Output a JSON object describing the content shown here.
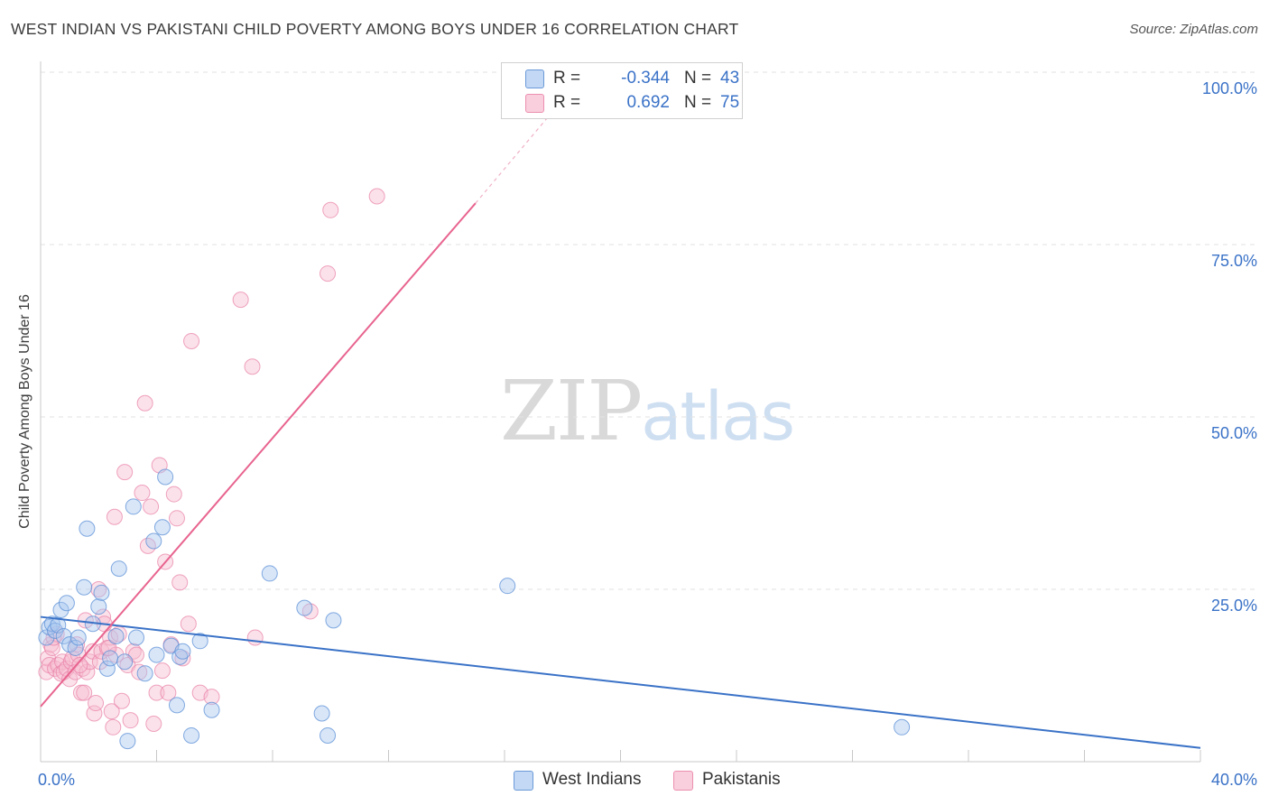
{
  "header": {
    "title": "WEST INDIAN VS PAKISTANI CHILD POVERTY AMONG BOYS UNDER 16 CORRELATION CHART",
    "source": "Source: ZipAtlas.com"
  },
  "watermark": {
    "zip": "ZIP",
    "atlas": "atlas"
  },
  "legend": {
    "rows": [
      {
        "r_label": "R =",
        "r_value": "-0.344",
        "n_label": "N =",
        "n_value": "43",
        "color": "#a9c8f0"
      },
      {
        "r_label": "R =",
        "r_value": "0.692",
        "n_label": "N =",
        "n_value": "75",
        "color": "#f7bcd0"
      }
    ]
  },
  "bottom_legend": {
    "west_indians": "West Indians",
    "pakistanis": "Pakistanis"
  },
  "colors": {
    "blue_fill": "#a9c8f0",
    "blue_stroke": "#5b8fd6",
    "blue_line": "#3a72c7",
    "pink_fill": "#f7bcd0",
    "pink_stroke": "#e87fa5",
    "pink_line": "#e8648f",
    "tick_label": "#3a72c7",
    "grid": "#e2e2e2"
  },
  "chart_data": {
    "type": "scatter",
    "title": "WEST INDIAN VS PAKISTANI CHILD POVERTY AMONG BOYS UNDER 16 CORRELATION CHART",
    "xlabel": "",
    "ylabel": "Child Poverty Among Boys Under 16",
    "xlim": [
      0,
      40
    ],
    "ylim": [
      0,
      100
    ],
    "x_tick_labels": [
      "0.0%",
      "40.0%"
    ],
    "y_tick_labels": [
      "25.0%",
      "50.0%",
      "75.0%",
      "100.0%"
    ],
    "y_ticks": [
      25,
      50,
      75,
      100
    ],
    "grid": true,
    "legend_position": "top-center",
    "series": [
      {
        "name": "West Indians",
        "r": -0.344,
        "n": 43,
        "trend": {
          "x": [
            0,
            40
          ],
          "y": [
            21.0,
            2.0
          ]
        },
        "points": [
          [
            0.2,
            18.0
          ],
          [
            0.3,
            19.5
          ],
          [
            0.4,
            20.0
          ],
          [
            0.5,
            19.0
          ],
          [
            0.6,
            19.8
          ],
          [
            0.7,
            22.0
          ],
          [
            0.8,
            18.2
          ],
          [
            0.9,
            23.0
          ],
          [
            1.0,
            17.0
          ],
          [
            1.2,
            16.5
          ],
          [
            1.3,
            18.0
          ],
          [
            1.5,
            25.3
          ],
          [
            1.6,
            33.8
          ],
          [
            1.8,
            20.0
          ],
          [
            2.0,
            22.5
          ],
          [
            2.1,
            24.5
          ],
          [
            2.3,
            13.5
          ],
          [
            2.4,
            15.0
          ],
          [
            2.6,
            18.2
          ],
          [
            2.7,
            28.0
          ],
          [
            2.9,
            14.5
          ],
          [
            3.0,
            3.0
          ],
          [
            3.2,
            37.0
          ],
          [
            3.3,
            18.0
          ],
          [
            3.6,
            12.8
          ],
          [
            3.9,
            32.0
          ],
          [
            4.0,
            15.5
          ],
          [
            4.2,
            34.0
          ],
          [
            4.3,
            41.3
          ],
          [
            4.5,
            16.8
          ],
          [
            4.7,
            8.2
          ],
          [
            4.8,
            15.2
          ],
          [
            4.9,
            16.0
          ],
          [
            5.2,
            3.8
          ],
          [
            5.5,
            17.5
          ],
          [
            5.9,
            7.5
          ],
          [
            7.9,
            27.3
          ],
          [
            9.1,
            22.3
          ],
          [
            9.7,
            7.0
          ],
          [
            9.9,
            3.8
          ],
          [
            10.1,
            20.5
          ],
          [
            16.1,
            25.5
          ],
          [
            29.7,
            5.0
          ]
        ]
      },
      {
        "name": "Pakistanis",
        "r": 0.692,
        "n": 75,
        "trend": {
          "x": [
            0,
            15
          ],
          "y": [
            8.0,
            81.0
          ]
        },
        "trend_dashed": {
          "x": [
            15,
            17.6
          ],
          "y": [
            81.0,
            94.0
          ]
        },
        "points": [
          [
            0.2,
            13.0
          ],
          [
            0.25,
            15.0
          ],
          [
            0.3,
            14.0
          ],
          [
            0.35,
            17.0
          ],
          [
            0.4,
            16.5
          ],
          [
            0.5,
            13.5
          ],
          [
            0.55,
            18.5
          ],
          [
            0.6,
            14.0
          ],
          [
            0.7,
            12.8
          ],
          [
            0.75,
            14.5
          ],
          [
            0.8,
            13.0
          ],
          [
            0.9,
            13.5
          ],
          [
            1.0,
            12.0
          ],
          [
            1.05,
            14.5
          ],
          [
            1.1,
            15.0
          ],
          [
            1.2,
            13.0
          ],
          [
            1.25,
            17.0
          ],
          [
            1.3,
            15.5
          ],
          [
            1.4,
            10.0
          ],
          [
            1.45,
            13.5
          ],
          [
            1.5,
            10.0
          ],
          [
            1.55,
            20.5
          ],
          [
            1.6,
            13.0
          ],
          [
            1.7,
            14.5
          ],
          [
            1.8,
            16.0
          ],
          [
            1.85,
            7.0
          ],
          [
            1.9,
            8.5
          ],
          [
            2.0,
            25.0
          ],
          [
            2.05,
            14.5
          ],
          [
            2.1,
            16.0
          ],
          [
            2.15,
            21.0
          ],
          [
            2.2,
            20.0
          ],
          [
            2.3,
            16.5
          ],
          [
            2.4,
            18.0
          ],
          [
            2.45,
            7.3
          ],
          [
            2.5,
            5.0
          ],
          [
            2.55,
            35.5
          ],
          [
            2.6,
            15.5
          ],
          [
            2.7,
            18.5
          ],
          [
            2.8,
            8.8
          ],
          [
            2.9,
            42.0
          ],
          [
            3.0,
            14.0
          ],
          [
            3.1,
            6.0
          ],
          [
            3.2,
            16.0
          ],
          [
            3.3,
            15.5
          ],
          [
            3.4,
            13.0
          ],
          [
            3.5,
            39.0
          ],
          [
            3.6,
            52.0
          ],
          [
            3.7,
            31.3
          ],
          [
            3.8,
            37.0
          ],
          [
            3.9,
            5.5
          ],
          [
            4.0,
            10.0
          ],
          [
            4.1,
            43.0
          ],
          [
            4.2,
            13.2
          ],
          [
            4.3,
            29.0
          ],
          [
            4.4,
            10.0
          ],
          [
            4.5,
            17.0
          ],
          [
            4.6,
            38.8
          ],
          [
            4.7,
            35.3
          ],
          [
            4.8,
            26.0
          ],
          [
            4.9,
            15.0
          ],
          [
            5.1,
            20.0
          ],
          [
            5.2,
            61.0
          ],
          [
            5.5,
            10.0
          ],
          [
            5.9,
            9.4
          ],
          [
            6.9,
            67.0
          ],
          [
            7.3,
            57.3
          ],
          [
            7.4,
            18.0
          ],
          [
            9.3,
            21.8
          ],
          [
            9.9,
            70.8
          ],
          [
            10.0,
            80.0
          ],
          [
            11.6,
            82.0
          ],
          [
            0.45,
            18.0
          ],
          [
            1.35,
            14.0
          ],
          [
            2.35,
            16.5
          ]
        ]
      }
    ]
  }
}
